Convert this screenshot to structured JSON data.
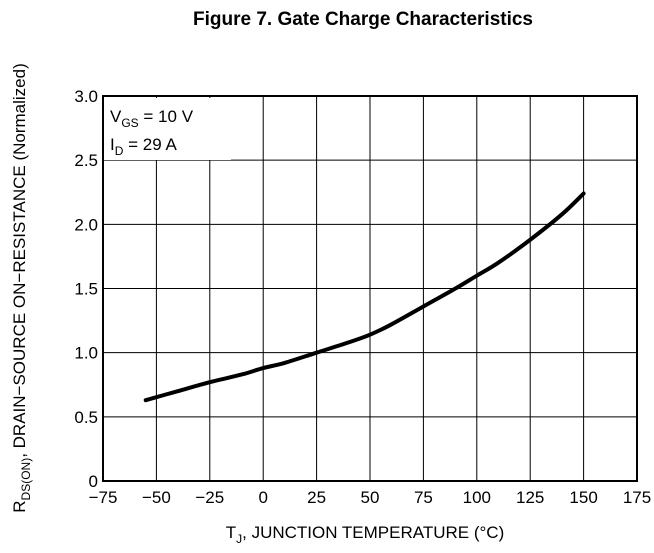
{
  "chart_data": {
    "type": "line",
    "title": "Figure 7. Gate Charge Characteristics",
    "xlabel": {
      "main": "T",
      "sub": "J",
      "rest": ", JUNCTION TEMPERATURE (°C)"
    },
    "ylabel": {
      "main": "R",
      "sub": "DS(ON)",
      "rest": ", DRAIN−SOURCE ON−RESISTANCE (Normalized)"
    },
    "xlim": [
      -75,
      175
    ],
    "ylim": [
      0,
      3.0
    ],
    "x_ticks": [
      "−75",
      "−50",
      "−25",
      "0",
      "25",
      "50",
      "75",
      "100",
      "125",
      "150",
      "175"
    ],
    "y_ticks": [
      "0",
      "0.5",
      "1.0",
      "1.5",
      "2.0",
      "2.5",
      "3.0"
    ],
    "grid": true,
    "annotations": [
      {
        "main": "V",
        "sub": "GS",
        "rest": " = 10 V"
      },
      {
        "main": "I",
        "sub": "D",
        "rest": " = 29 A"
      }
    ],
    "series": [
      {
        "x": [
          -55,
          -40,
          -25,
          -10,
          0,
          10,
          25,
          40,
          50,
          60,
          75,
          90,
          100,
          110,
          125,
          140,
          150
        ],
        "y": [
          0.63,
          0.7,
          0.77,
          0.83,
          0.88,
          0.92,
          1.0,
          1.08,
          1.14,
          1.22,
          1.36,
          1.5,
          1.6,
          1.7,
          1.88,
          2.08,
          2.24
        ]
      }
    ]
  }
}
